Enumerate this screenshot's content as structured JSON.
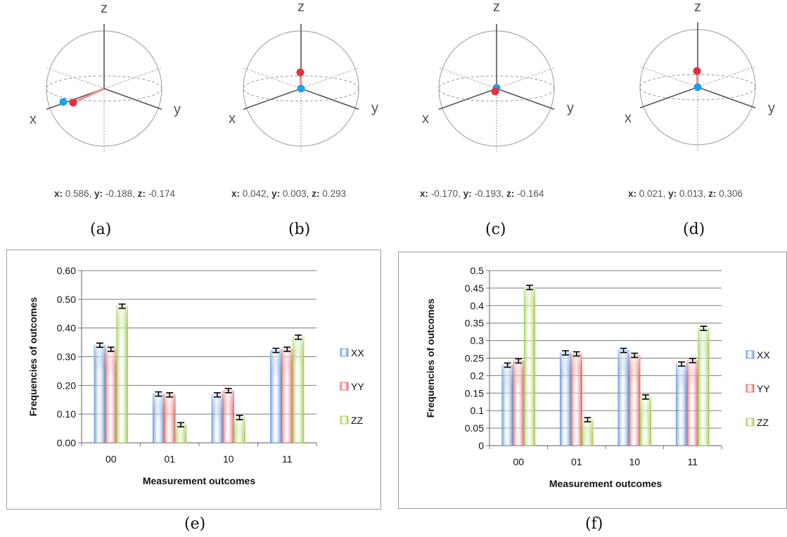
{
  "spheres": [
    {
      "x_val": "0.586",
      "y_val": "-0.188",
      "z_val": "-0.174",
      "caption": "(a)"
    },
    {
      "x_val": "0.042",
      "y_val": "0.003",
      "z_val": "0.293",
      "caption": "(b)"
    },
    {
      "x_val": "-0.170",
      "y_val": "-0.193",
      "z_val": "-0.164",
      "caption": "(c)"
    },
    {
      "x_val": "0.021",
      "y_val": "0.013",
      "z_val": "0.306",
      "caption": "(d)"
    }
  ],
  "sphere_axis_labels": {
    "x": "x",
    "y": "y",
    "z": "z"
  },
  "coord_keys": {
    "x": "x:",
    "y": "y:",
    "z": "z:"
  },
  "colors": {
    "blue_point": "#1aa3e8",
    "red_point": "#e8303a",
    "XX": "#5b8fd6",
    "YY": "#e06060",
    "ZZ": "#9ccc4a"
  },
  "chart_data": [
    {
      "type": "bar",
      "caption": "(e)",
      "categories": [
        "00",
        "01",
        "10",
        "11"
      ],
      "series": [
        {
          "name": "XX",
          "values": [
            0.34,
            0.17,
            0.167,
            0.322
          ]
        },
        {
          "name": "YY",
          "values": [
            0.326,
            0.167,
            0.182,
            0.326
          ]
        },
        {
          "name": "ZZ",
          "values": [
            0.476,
            0.063,
            0.088,
            0.368
          ]
        }
      ],
      "xlabel": "Measurement outcomes",
      "ylabel": "Frequencies of outcomes",
      "ylim": [
        0,
        0.6
      ],
      "yticks": [
        "0.00",
        "0.10",
        "0.20",
        "0.30",
        "0.40",
        "0.50",
        "0.60"
      ],
      "grid": true,
      "error_bars": true,
      "legend": "right"
    },
    {
      "type": "bar",
      "caption": "(f)",
      "categories": [
        "00",
        "01",
        "10",
        "11"
      ],
      "series": [
        {
          "name": "XX",
          "values": [
            0.23,
            0.265,
            0.272,
            0.233
          ]
        },
        {
          "name": "YY",
          "values": [
            0.242,
            0.262,
            0.258,
            0.243
          ]
        },
        {
          "name": "ZZ",
          "values": [
            0.452,
            0.074,
            0.139,
            0.335
          ]
        }
      ],
      "xlabel": "Measurement outcomes",
      "ylabel": "Frequencies of outcomes",
      "ylim": [
        0,
        0.5
      ],
      "yticks": [
        "0",
        "0.05",
        "0.1",
        "0.15",
        "0.2",
        "0.25",
        "0.3",
        "0.35",
        "0.4",
        "0.45",
        "0.5"
      ],
      "grid": true,
      "error_bars": true,
      "legend": "right"
    }
  ]
}
